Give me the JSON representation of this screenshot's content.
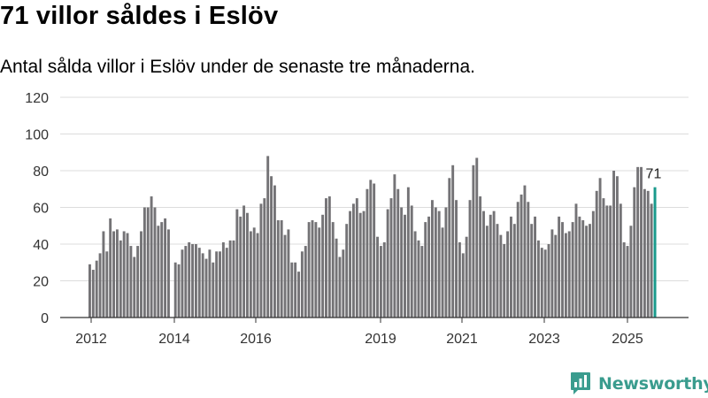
{
  "header": {
    "title": "71 villor såldes i Eslöv",
    "subtitle": "Antal sålda villor i Eslöv under de senaste tre månaderna."
  },
  "brand": {
    "name": "Newsworthy"
  },
  "colors": {
    "bar": "#747376",
    "highlight": "#1a9a8c",
    "grid": "#dcdcdc",
    "axis": "#333333"
  },
  "chart_data": {
    "type": "bar",
    "title": "71 villor såldes i Eslöv",
    "subtitle": "Antal sålda villor i Eslöv under de senaste tre månaderna.",
    "xlabel": "",
    "ylabel": "",
    "ylim": [
      0,
      120
    ],
    "y_ticks": [
      0,
      20,
      40,
      60,
      80,
      100,
      120
    ],
    "x_ticks": [
      "2012",
      "2014",
      "2016",
      "2019",
      "2021",
      "2023",
      "2025"
    ],
    "period": "monthly, rolling three-month totals, first bar early 2012",
    "values": [
      29,
      26,
      31,
      35,
      47,
      36,
      54,
      47,
      48,
      42,
      47,
      46,
      39,
      33,
      39,
      47,
      60,
      60,
      66,
      60,
      50,
      52,
      54,
      48,
      0,
      30,
      29,
      37,
      39,
      41,
      40,
      40,
      38,
      35,
      32,
      37,
      30,
      36,
      36,
      41,
      38,
      42,
      42,
      59,
      55,
      61,
      57,
      47,
      49,
      46,
      62,
      65,
      88,
      77,
      72,
      53,
      53,
      45,
      48,
      30,
      30,
      25,
      36,
      39,
      52,
      53,
      52,
      49,
      56,
      65,
      66,
      52,
      43,
      33,
      37,
      51,
      58,
      62,
      65,
      57,
      58,
      70,
      75,
      73,
      44,
      39,
      41,
      59,
      65,
      78,
      70,
      60,
      56,
      71,
      61,
      47,
      42,
      39,
      52,
      55,
      64,
      60,
      58,
      49,
      60,
      76,
      83,
      64,
      41,
      35,
      44,
      64,
      83,
      87,
      66,
      58,
      50,
      56,
      58,
      51,
      45,
      40,
      47,
      55,
      51,
      63,
      67,
      72,
      63,
      51,
      55,
      42,
      38,
      37,
      40,
      48,
      45,
      55,
      52,
      46,
      47,
      52,
      62,
      55,
      53,
      50,
      51,
      58,
      69,
      76,
      65,
      61,
      61,
      80,
      77,
      62,
      41,
      39,
      50,
      71,
      82,
      82,
      70,
      69,
      62,
      71
    ],
    "last_label": "71"
  }
}
